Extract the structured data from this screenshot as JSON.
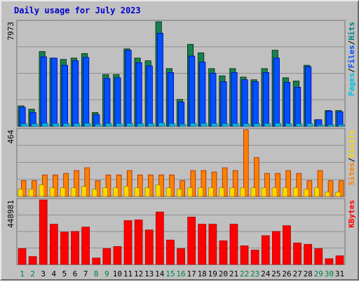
{
  "chart_data": {
    "type": "bar",
    "title": "Daily usage for July 2023",
    "categories": [
      "1",
      "2",
      "3",
      "4",
      "5",
      "6",
      "7",
      "8",
      "9",
      "10",
      "11",
      "12",
      "13",
      "14",
      "15",
      "16",
      "17",
      "18",
      "19",
      "20",
      "21",
      "22",
      "23",
      "24",
      "25",
      "26",
      "27",
      "28",
      "29",
      "30",
      "31"
    ],
    "weekend_days": [
      "1",
      "2",
      "8",
      "9",
      "15",
      "16",
      "22",
      "23",
      "29",
      "30"
    ],
    "panels": [
      {
        "name": "hits_files_pages",
        "max_label": "7973",
        "ymax": 7973,
        "legend": [
          "Pages",
          "/",
          "Files",
          "/",
          "Hits"
        ],
        "legend_colors": [
          "#00c0e0",
          "#000000",
          "#0050ff",
          "#000000",
          "#008080"
        ],
        "series": [
          {
            "name": "Hits",
            "color": "#188050",
            "values": [
              1550,
              1300,
              5700,
              5200,
              5100,
              5200,
              5550,
              1050,
              3950,
              3950,
              5900,
              5200,
              5000,
              7973,
              4400,
              2050,
              6250,
              5600,
              4400,
              3850,
              4400,
              3750,
              3550,
              4400,
              5800,
              3700,
              3450,
              4650,
              500,
              1200,
              1200
            ]
          },
          {
            "name": "Files",
            "color": "#0050ff",
            "values": [
              1450,
              1050,
              5300,
              5200,
              4650,
              5000,
              5250,
              880,
              3650,
              3700,
              5800,
              4850,
              4600,
              7100,
              4100,
              1850,
              5350,
              4900,
              4050,
              3400,
              4100,
              3550,
              3400,
              4100,
              5200,
              3350,
              2980,
              4550,
              500,
              1150,
              1100
            ]
          },
          {
            "name": "Pages",
            "color": "#00c0e0",
            "values": [
              180,
              180,
              220,
              200,
              200,
              200,
              210,
              150,
              200,
              200,
              220,
              200,
              200,
              250,
              200,
              150,
              220,
              210,
              200,
              190,
              200,
              190,
              180,
              190,
              220,
              190,
              180,
              200,
              100,
              120,
              120
            ]
          }
        ]
      },
      {
        "name": "visits_sites",
        "max_label": "464",
        "ymax": 464,
        "legend": [
          "Sites",
          "/",
          "Visits"
        ],
        "legend_colors": [
          "#ff8000",
          "#000000",
          "#ffd800"
        ],
        "series": [
          {
            "name": "Visits",
            "color": "#ff8000",
            "values": [
              110,
              110,
              150,
              150,
              160,
              180,
              200,
              110,
              150,
              150,
              180,
              150,
              150,
              150,
              150,
              110,
              180,
              180,
              170,
              200,
              180,
              464,
              270,
              160,
              160,
              180,
              160,
              110,
              180,
              110,
              110
            ]
          },
          {
            "name": "Sites",
            "color": "#ffd800",
            "values": [
              50,
              50,
              80,
              60,
              60,
              60,
              70,
              50,
              60,
              60,
              70,
              60,
              60,
              80,
              60,
              50,
              60,
              60,
              60,
              60,
              60,
              60,
              60,
              60,
              60,
              60,
              60,
              50,
              60,
              30,
              30
            ]
          }
        ]
      },
      {
        "name": "kbytes",
        "max_label": "448981",
        "ymax": 448981,
        "legend": [
          "KBytes"
        ],
        "legend_colors": [
          "#ff0000"
        ],
        "series": [
          {
            "name": "KBytes",
            "color": "#ff0000",
            "values": [
              110000,
              55000,
              448981,
              280000,
              225000,
              230000,
              260000,
              45000,
              110000,
              125000,
              305000,
              310000,
              240000,
              365000,
              170000,
              110000,
              330000,
              280000,
              280000,
              165000,
              280000,
              130000,
              100000,
              200000,
              230000,
              270000,
              150000,
              140000,
              110000,
              40000,
              60000
            ]
          }
        ]
      }
    ]
  },
  "colors": {
    "title": "#0000cc",
    "weekday_label": "#000000",
    "weekend_label": "#008040",
    "panel_bg": "#c0c0c0",
    "gridline": "#909090"
  }
}
